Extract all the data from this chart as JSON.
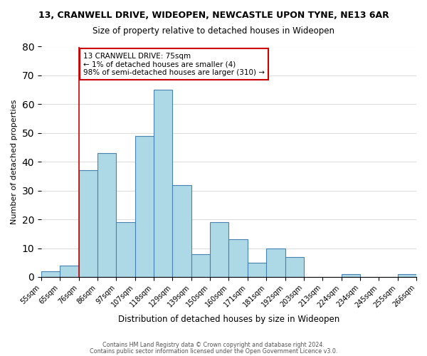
{
  "title": "13, CRANWELL DRIVE, WIDEOPEN, NEWCASTLE UPON TYNE, NE13 6AR",
  "subtitle": "Size of property relative to detached houses in Wideopen",
  "xlabel": "Distribution of detached houses by size in Wideopen",
  "ylabel": "Number of detached properties",
  "bin_edges": [
    "55sqm",
    "65sqm",
    "76sqm",
    "86sqm",
    "97sqm",
    "107sqm",
    "118sqm",
    "129sqm",
    "139sqm",
    "150sqm",
    "160sqm",
    "171sqm",
    "181sqm",
    "192sqm",
    "203sqm",
    "213sqm",
    "224sqm",
    "234sqm",
    "245sqm",
    "255sqm",
    "266sqm"
  ],
  "counts": [
    2,
    4,
    37,
    43,
    19,
    49,
    65,
    32,
    8,
    19,
    13,
    5,
    10,
    7,
    0,
    0,
    1,
    0,
    0,
    1
  ],
  "ylim": [
    0,
    80
  ],
  "yticks": [
    0,
    10,
    20,
    30,
    40,
    50,
    60,
    70,
    80
  ],
  "bar_color": "#add8e6",
  "bar_edge_color": "#4682b4",
  "vline_x": 2,
  "vline_color": "#cc0000",
  "annotation_title": "13 CRANWELL DRIVE: 75sqm",
  "annotation_line1": "← 1% of detached houses are smaller (4)",
  "annotation_line2": "98% of semi-detached houses are larger (310) →",
  "annotation_box_color": "#ffffff",
  "annotation_box_edge": "#cc0000",
  "footer1": "Contains HM Land Registry data © Crown copyright and database right 2024.",
  "footer2": "Contains public sector information licensed under the Open Government Licence v3.0.",
  "background_color": "#ffffff",
  "grid_color": "#dddddd"
}
